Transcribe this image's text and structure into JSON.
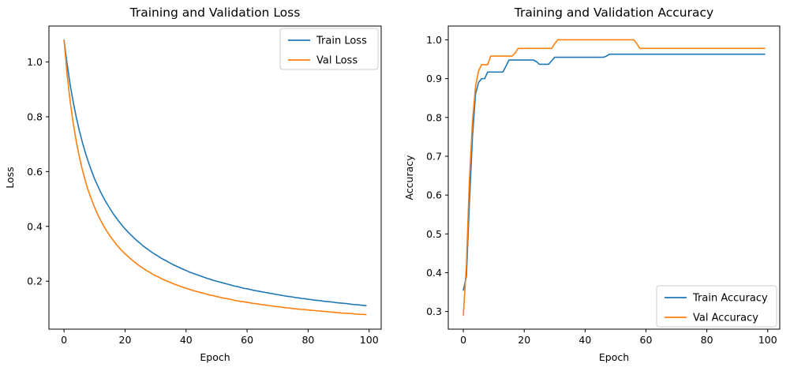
{
  "figure": {
    "background": "#ffffff",
    "spine_color": "#000000",
    "legend_border_color": "#cccccc"
  },
  "chart_data": [
    {
      "type": "line",
      "title": "Training and Validation Loss",
      "xlabel": "Epoch",
      "ylabel": "Loss",
      "x_range": [
        0,
        99
      ],
      "xlim": [
        -4.95,
        103.95
      ],
      "ylim": [
        0.025,
        1.131
      ],
      "xticks": [
        0,
        20,
        40,
        60,
        80,
        100
      ],
      "yticks": [
        0.2,
        0.4,
        0.6,
        0.8,
        1.0
      ],
      "grid": false,
      "legend": {
        "position": "upper-right",
        "labels": [
          "Train Loss",
          "Val Loss"
        ]
      },
      "series": [
        {
          "name": "Train Loss",
          "color": "#1f77b4",
          "values": [
            1.08,
            0.993,
            0.918,
            0.854,
            0.799,
            0.75,
            0.707,
            0.668,
            0.634,
            0.603,
            0.574,
            0.549,
            0.525,
            0.504,
            0.484,
            0.466,
            0.448,
            0.433,
            0.418,
            0.404,
            0.391,
            0.379,
            0.368,
            0.357,
            0.347,
            0.338,
            0.328,
            0.32,
            0.312,
            0.304,
            0.297,
            0.29,
            0.283,
            0.277,
            0.271,
            0.265,
            0.259,
            0.254,
            0.249,
            0.244,
            0.239,
            0.234,
            0.23,
            0.226,
            0.222,
            0.218,
            0.214,
            0.21,
            0.207,
            0.203,
            0.2,
            0.197,
            0.194,
            0.191,
            0.188,
            0.185,
            0.182,
            0.18,
            0.177,
            0.174,
            0.172,
            0.17,
            0.167,
            0.165,
            0.163,
            0.161,
            0.159,
            0.157,
            0.155,
            0.153,
            0.151,
            0.149,
            0.147,
            0.145,
            0.144,
            0.142,
            0.14,
            0.139,
            0.137,
            0.136,
            0.134,
            0.133,
            0.131,
            0.13,
            0.129,
            0.127,
            0.126,
            0.125,
            0.124,
            0.122,
            0.121,
            0.12,
            0.119,
            0.118,
            0.116,
            0.115,
            0.114,
            0.113,
            0.112,
            0.111
          ]
        },
        {
          "name": "Val Loss",
          "color": "#ff7f0e",
          "values": [
            1.08,
            0.956,
            0.857,
            0.777,
            0.711,
            0.655,
            0.607,
            0.565,
            0.529,
            0.498,
            0.47,
            0.444,
            0.422,
            0.401,
            0.383,
            0.366,
            0.351,
            0.336,
            0.323,
            0.311,
            0.3,
            0.29,
            0.28,
            0.271,
            0.262,
            0.254,
            0.247,
            0.239,
            0.233,
            0.226,
            0.22,
            0.215,
            0.209,
            0.204,
            0.199,
            0.195,
            0.19,
            0.186,
            0.182,
            0.178,
            0.174,
            0.171,
            0.167,
            0.164,
            0.161,
            0.158,
            0.155,
            0.152,
            0.149,
            0.147,
            0.144,
            0.142,
            0.139,
            0.137,
            0.135,
            0.133,
            0.13,
            0.128,
            0.126,
            0.125,
            0.123,
            0.121,
            0.119,
            0.118,
            0.116,
            0.114,
            0.113,
            0.111,
            0.11,
            0.108,
            0.107,
            0.106,
            0.104,
            0.103,
            0.102,
            0.1,
            0.099,
            0.098,
            0.097,
            0.096,
            0.095,
            0.094,
            0.093,
            0.092,
            0.091,
            0.09,
            0.089,
            0.088,
            0.087,
            0.086,
            0.085,
            0.084,
            0.083,
            0.083,
            0.082,
            0.081,
            0.08,
            0.079,
            0.079,
            0.078
          ]
        }
      ]
    },
    {
      "type": "line",
      "title": "Training and Validation Accuracy",
      "xlabel": "Epoch",
      "ylabel": "Accuracy",
      "x_range": [
        0,
        99
      ],
      "xlim": [
        -4.95,
        103.95
      ],
      "ylim": [
        0.2545,
        1.0355
      ],
      "xticks": [
        0,
        20,
        40,
        60,
        80,
        100
      ],
      "yticks": [
        0.3,
        0.4,
        0.5,
        0.6,
        0.7,
        0.8,
        0.9,
        1.0
      ],
      "grid": false,
      "legend": {
        "position": "lower-right",
        "labels": [
          "Train Accuracy",
          "Val Accuracy"
        ]
      },
      "series": [
        {
          "name": "Train Accuracy",
          "color": "#1f77b4",
          "values": [
            0.355,
            0.39,
            0.58,
            0.75,
            0.86,
            0.89,
            0.9,
            0.9,
            0.917,
            0.917,
            0.917,
            0.917,
            0.917,
            0.917,
            0.932,
            0.948,
            0.948,
            0.948,
            0.948,
            0.948,
            0.948,
            0.948,
            0.948,
            0.948,
            0.944,
            0.937,
            0.937,
            0.937,
            0.937,
            0.946,
            0.955,
            0.955,
            0.955,
            0.955,
            0.955,
            0.955,
            0.955,
            0.955,
            0.955,
            0.955,
            0.955,
            0.955,
            0.955,
            0.955,
            0.955,
            0.955,
            0.955,
            0.958,
            0.963,
            0.963,
            0.963,
            0.963,
            0.963,
            0.963,
            0.963,
            0.963,
            0.963,
            0.963,
            0.963,
            0.963,
            0.963,
            0.963,
            0.963,
            0.963,
            0.963,
            0.963,
            0.963,
            0.963,
            0.963,
            0.963,
            0.963,
            0.963,
            0.963,
            0.963,
            0.963,
            0.963,
            0.963,
            0.963,
            0.963,
            0.963,
            0.963,
            0.963,
            0.963,
            0.963,
            0.963,
            0.963,
            0.963,
            0.963,
            0.963,
            0.963,
            0.963,
            0.963,
            0.963,
            0.963,
            0.963,
            0.963,
            0.963,
            0.963,
            0.963,
            0.963
          ]
        },
        {
          "name": "Val Accuracy",
          "color": "#ff7f0e",
          "values": [
            0.29,
            0.42,
            0.64,
            0.79,
            0.88,
            0.92,
            0.936,
            0.936,
            0.936,
            0.958,
            0.958,
            0.958,
            0.958,
            0.958,
            0.958,
            0.958,
            0.958,
            0.966,
            0.978,
            0.978,
            0.978,
            0.978,
            0.978,
            0.978,
            0.978,
            0.978,
            0.978,
            0.978,
            0.978,
            0.978,
            0.99,
            1.0,
            1.0,
            1.0,
            1.0,
            1.0,
            1.0,
            1.0,
            1.0,
            1.0,
            1.0,
            1.0,
            1.0,
            1.0,
            1.0,
            1.0,
            1.0,
            1.0,
            1.0,
            1.0,
            1.0,
            1.0,
            1.0,
            1.0,
            1.0,
            1.0,
            1.0,
            0.99,
            0.978,
            0.978,
            0.978,
            0.978,
            0.978,
            0.978,
            0.978,
            0.978,
            0.978,
            0.978,
            0.978,
            0.978,
            0.978,
            0.978,
            0.978,
            0.978,
            0.978,
            0.978,
            0.978,
            0.978,
            0.978,
            0.978,
            0.978,
            0.978,
            0.978,
            0.978,
            0.978,
            0.978,
            0.978,
            0.978,
            0.978,
            0.978,
            0.978,
            0.978,
            0.978,
            0.978,
            0.978,
            0.978,
            0.978,
            0.978,
            0.978,
            0.978
          ]
        }
      ]
    }
  ]
}
